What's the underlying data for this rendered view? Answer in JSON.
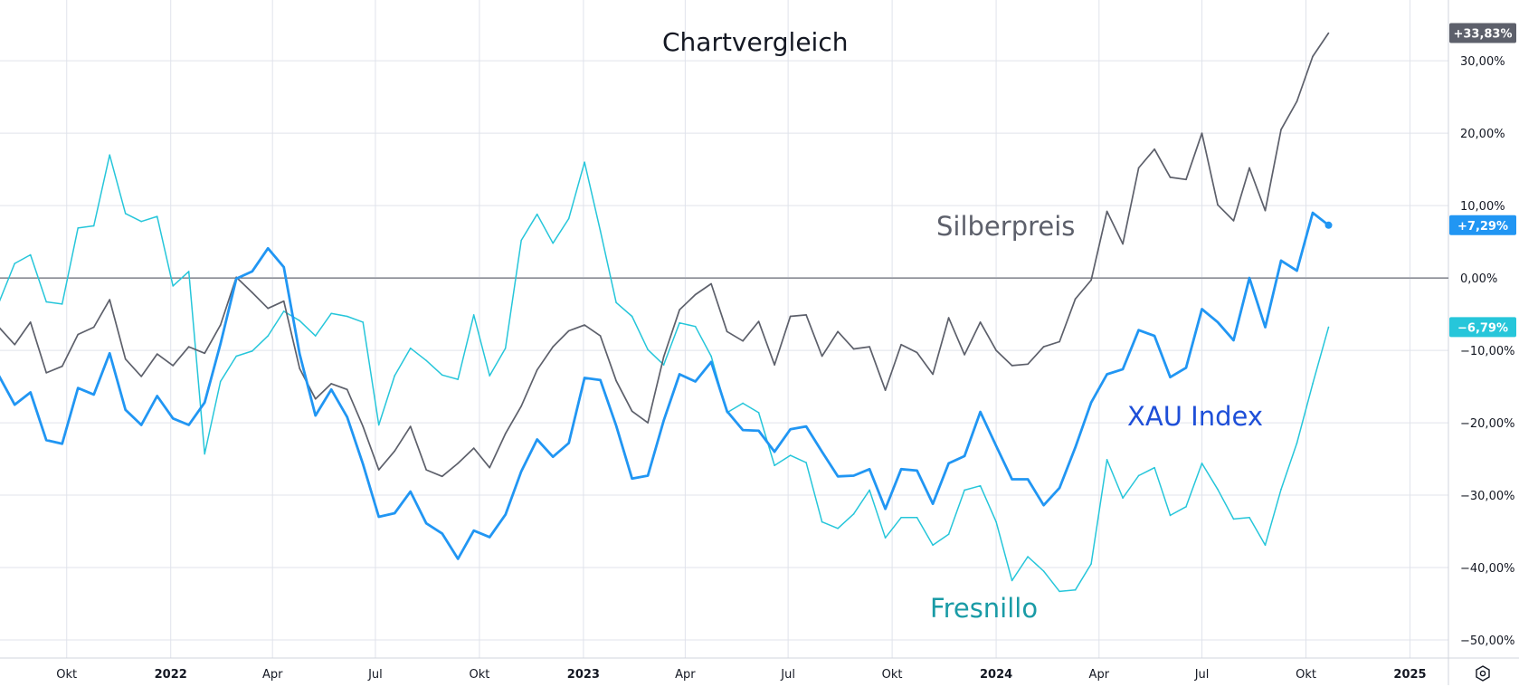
{
  "chart_data": {
    "type": "line",
    "title": "Chartvergleich",
    "xlim": [
      "2021-08-03",
      "2025-02-04"
    ],
    "ylim": [
      -52.5,
      38.4
    ],
    "grid": true,
    "y_axis_position": "right",
    "zero_line": 0,
    "x": [
      "2021-08-02",
      "2021-08-16",
      "2021-08-30",
      "2021-09-13",
      "2021-09-27",
      "2021-10-11",
      "2021-10-25",
      "2021-11-08",
      "2021-11-22",
      "2021-12-06",
      "2021-12-20",
      "2022-01-03",
      "2022-01-17",
      "2022-01-31",
      "2022-02-14",
      "2022-02-28",
      "2022-03-14",
      "2022-03-28",
      "2022-04-11",
      "2022-04-25",
      "2022-05-09",
      "2022-05-23",
      "2022-06-06",
      "2022-06-20",
      "2022-07-04",
      "2022-07-18",
      "2022-08-01",
      "2022-08-15",
      "2022-08-29",
      "2022-09-12",
      "2022-09-26",
      "2022-10-10",
      "2022-10-24",
      "2022-11-07",
      "2022-11-21",
      "2022-12-05",
      "2022-12-19",
      "2023-01-02",
      "2023-01-16",
      "2023-01-30",
      "2023-02-13",
      "2023-02-27",
      "2023-03-13",
      "2023-03-27",
      "2023-04-10",
      "2023-04-24",
      "2023-05-08",
      "2023-05-22",
      "2023-06-05",
      "2023-06-19",
      "2023-07-03",
      "2023-07-17",
      "2023-07-31",
      "2023-08-14",
      "2023-08-28",
      "2023-09-11",
      "2023-09-25",
      "2023-10-09",
      "2023-10-23",
      "2023-11-06",
      "2023-11-20",
      "2023-12-04",
      "2023-12-18",
      "2024-01-01",
      "2024-01-15",
      "2024-01-29",
      "2024-02-12",
      "2024-02-26",
      "2024-03-11",
      "2024-03-25",
      "2024-04-08",
      "2024-04-22",
      "2024-05-06",
      "2024-05-20",
      "2024-06-03",
      "2024-06-17",
      "2024-07-01",
      "2024-07-15",
      "2024-07-29",
      "2024-08-12",
      "2024-08-26",
      "2024-09-09",
      "2024-09-23",
      "2024-10-07",
      "2024-10-21"
    ],
    "series": [
      {
        "name": "Silberpreis",
        "color": "#5d606b",
        "last_label": "+33,83%",
        "values": [
          -6.8,
          -9.2,
          -6.1,
          -13.1,
          -12.2,
          -7.8,
          -6.8,
          -3.0,
          -11.2,
          -13.6,
          -10.5,
          -12.1,
          -9.5,
          -10.4,
          -6.5,
          0.1,
          -2.0,
          -4.2,
          -3.2,
          -12.5,
          -16.7,
          -14.6,
          -15.4,
          -20.5,
          -26.5,
          -23.9,
          -20.5,
          -26.5,
          -27.4,
          -25.6,
          -23.5,
          -26.2,
          -21.5,
          -17.7,
          -12.7,
          -9.5,
          -7.3,
          -6.5,
          -8.0,
          -14.2,
          -18.4,
          -20.0,
          -10.9,
          -4.4,
          -2.3,
          -0.8,
          -7.4,
          -8.7,
          -6.0,
          -12.0,
          -5.3,
          -5.1,
          -10.8,
          -7.4,
          -9.8,
          -9.5,
          -15.5,
          -9.2,
          -10.3,
          -13.3,
          -5.5,
          -10.6,
          -6.1,
          -10.0,
          -12.1,
          -11.9,
          -9.5,
          -8.8,
          -2.9,
          -0.3,
          9.2,
          4.7,
          15.2,
          17.8,
          13.9,
          13.6,
          20.0,
          10.1,
          7.9,
          15.2,
          9.3,
          20.5,
          24.4,
          30.6,
          33.83
        ]
      },
      {
        "name": "XAU Index",
        "color": "#2196f3",
        "label_color": "#1e4fd8",
        "last_label": "+7,29%",
        "values": [
          -13.5,
          -17.5,
          -15.8,
          -22.4,
          -22.9,
          -15.2,
          -16.1,
          -10.4,
          -18.2,
          -20.3,
          -16.3,
          -19.4,
          -20.3,
          -17.2,
          -9.1,
          -0.1,
          0.9,
          4.1,
          1.5,
          -10.5,
          -19.0,
          -15.4,
          -19.2,
          -25.7,
          -33.0,
          -32.5,
          -29.5,
          -33.9,
          -35.3,
          -38.8,
          -34.9,
          -35.8,
          -32.7,
          -26.7,
          -22.3,
          -24.7,
          -22.8,
          -13.8,
          -14.1,
          -20.4,
          -27.7,
          -27.3,
          -19.7,
          -13.3,
          -14.3,
          -11.6,
          -18.4,
          -21.0,
          -21.1,
          -24.0,
          -20.9,
          -20.5,
          -24.0,
          -27.4,
          -27.3,
          -26.4,
          -31.9,
          -26.4,
          -26.6,
          -31.2,
          -25.6,
          -24.6,
          -18.5,
          -23.2,
          -27.8,
          -27.8,
          -31.4,
          -29.0,
          -23.4,
          -17.2,
          -13.3,
          -12.6,
          -7.2,
          -8.0,
          -13.7,
          -12.4,
          -4.3,
          -6.1,
          -8.6,
          0.0,
          -6.8,
          2.4,
          1.0,
          9.0,
          7.29
        ]
      },
      {
        "name": "Fresnillo",
        "color": "#26c6da",
        "label_color": "#1a9ba6",
        "last_label": "−6,79%",
        "values": [
          -3.4,
          2.0,
          3.2,
          -3.3,
          -3.6,
          6.9,
          7.2,
          17.0,
          8.9,
          7.8,
          8.5,
          -1.1,
          0.9,
          -24.3,
          -14.3,
          -10.8,
          -10.1,
          -8.0,
          -4.6,
          -5.9,
          -8.0,
          -4.9,
          -5.3,
          -6.1,
          -20.3,
          -13.5,
          -9.7,
          -11.4,
          -13.4,
          -14.0,
          -5.1,
          -13.5,
          -9.7,
          5.2,
          8.8,
          4.8,
          8.2,
          16.0,
          6.5,
          -3.4,
          -5.3,
          -9.9,
          -12.0,
          -6.2,
          -6.7,
          -10.8,
          -18.6,
          -17.3,
          -18.6,
          -25.9,
          -24.5,
          -25.5,
          -33.7,
          -34.6,
          -32.6,
          -29.3,
          -35.9,
          -33.1,
          -33.1,
          -36.9,
          -35.4,
          -29.3,
          -28.7,
          -33.7,
          -41.8,
          -38.5,
          -40.5,
          -43.3,
          -43.1,
          -39.5,
          -25.1,
          -30.4,
          -27.3,
          -26.2,
          -32.8,
          -31.6,
          -25.6,
          -29.2,
          -33.3,
          -33.1,
          -36.9,
          -29.2,
          -22.8,
          -14.6,
          -6.79
        ]
      }
    ],
    "y_ticks": [
      {
        "value": 30,
        "label": "30,00%"
      },
      {
        "value": 20,
        "label": "20,00%"
      },
      {
        "value": 10,
        "label": "10,00%"
      },
      {
        "value": 0,
        "label": "0,00%"
      },
      {
        "value": -10,
        "label": "−10,00%"
      },
      {
        "value": -20,
        "label": "−20,00%"
      },
      {
        "value": -30,
        "label": "−30,00%"
      },
      {
        "value": -40,
        "label": "−40,00%"
      },
      {
        "value": -50,
        "label": "−50,00%"
      }
    ],
    "x_ticks": [
      {
        "date": "2021-10-01",
        "label": "Okt",
        "bold": false
      },
      {
        "date": "2022-01-01",
        "label": "2022",
        "bold": true
      },
      {
        "date": "2022-04-01",
        "label": "Apr",
        "bold": false
      },
      {
        "date": "2022-07-01",
        "label": "Jul",
        "bold": false
      },
      {
        "date": "2022-10-01",
        "label": "Okt",
        "bold": false
      },
      {
        "date": "2023-01-01",
        "label": "2023",
        "bold": true
      },
      {
        "date": "2023-04-01",
        "label": "Apr",
        "bold": false
      },
      {
        "date": "2023-07-01",
        "label": "Jul",
        "bold": false
      },
      {
        "date": "2023-10-01",
        "label": "Okt",
        "bold": false
      },
      {
        "date": "2024-01-01",
        "label": "2024",
        "bold": true
      },
      {
        "date": "2024-04-01",
        "label": "Apr",
        "bold": false
      },
      {
        "date": "2024-07-01",
        "label": "Jul",
        "bold": false
      },
      {
        "date": "2024-10-01",
        "label": "Okt",
        "bold": false
      },
      {
        "date": "2025-01-01",
        "label": "2025",
        "bold": true
      }
    ]
  },
  "colors": {
    "grid": "#e0e3eb",
    "zero_line": "#5d606b",
    "axis_text": "#131722",
    "badge_text": "#ffffff"
  },
  "settings_icon": "gear-icon"
}
